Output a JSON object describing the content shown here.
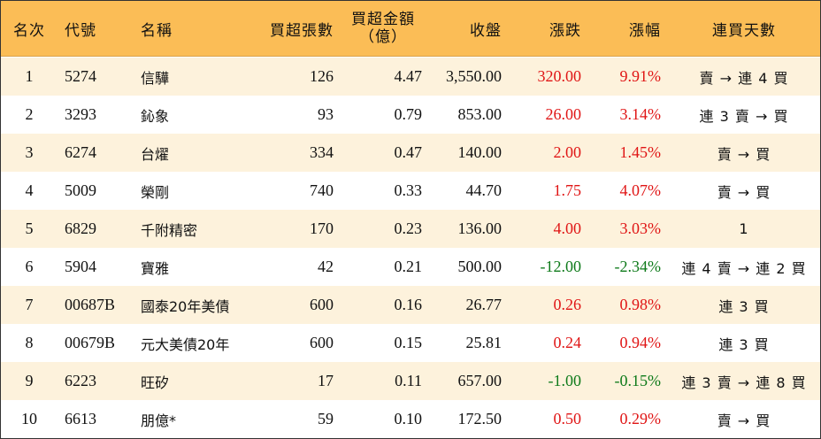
{
  "headers": {
    "rank": "名次",
    "code": "代號",
    "name": "名稱",
    "net_buy_lots": "買超張數",
    "net_buy_amount_l1": "買超金額",
    "net_buy_amount_l2": "（億）",
    "close": "收盤",
    "change": "漲跌",
    "change_pct": "漲幅",
    "streak": "連買天數"
  },
  "colors": {
    "header_bg": "#fbbd56",
    "stripe_bg": "#fdf2dc",
    "up": "#e01515",
    "down": "#0e7a1a"
  },
  "rows": [
    {
      "rank": "1",
      "code": "5274",
      "name": "信驊",
      "lots": "126",
      "amount": "4.47",
      "close": "3,550.00",
      "change": "320.00",
      "pct": "9.91%",
      "streak": "賣 → 連 4 買",
      "dir": "up"
    },
    {
      "rank": "2",
      "code": "3293",
      "name": "鈊象",
      "lots": "93",
      "amount": "0.79",
      "close": "853.00",
      "change": "26.00",
      "pct": "3.14%",
      "streak": "連 3 賣 → 買",
      "dir": "up"
    },
    {
      "rank": "3",
      "code": "6274",
      "name": "台燿",
      "lots": "334",
      "amount": "0.47",
      "close": "140.00",
      "change": "2.00",
      "pct": "1.45%",
      "streak": "賣 → 買",
      "dir": "up"
    },
    {
      "rank": "4",
      "code": "5009",
      "name": "榮剛",
      "lots": "740",
      "amount": "0.33",
      "close": "44.70",
      "change": "1.75",
      "pct": "4.07%",
      "streak": "賣 → 買",
      "dir": "up"
    },
    {
      "rank": "5",
      "code": "6829",
      "name": "千附精密",
      "lots": "170",
      "amount": "0.23",
      "close": "136.00",
      "change": "4.00",
      "pct": "3.03%",
      "streak": "1",
      "dir": "up"
    },
    {
      "rank": "6",
      "code": "5904",
      "name": "寶雅",
      "lots": "42",
      "amount": "0.21",
      "close": "500.00",
      "change": "-12.00",
      "pct": "-2.34%",
      "streak": "連 4 賣 → 連 2 買",
      "dir": "down"
    },
    {
      "rank": "7",
      "code": "00687B",
      "name": "國泰20年美債",
      "lots": "600",
      "amount": "0.16",
      "close": "26.77",
      "change": "0.26",
      "pct": "0.98%",
      "streak": "連 3 買",
      "dir": "up"
    },
    {
      "rank": "8",
      "code": "00679B",
      "name": "元大美債20年",
      "lots": "600",
      "amount": "0.15",
      "close": "25.81",
      "change": "0.24",
      "pct": "0.94%",
      "streak": "連 3 買",
      "dir": "up"
    },
    {
      "rank": "9",
      "code": "6223",
      "name": "旺矽",
      "lots": "17",
      "amount": "0.11",
      "close": "657.00",
      "change": "-1.00",
      "pct": "-0.15%",
      "streak": "連 3 賣 → 連 8 買",
      "dir": "down"
    },
    {
      "rank": "10",
      "code": "6613",
      "name": "朋億*",
      "lots": "59",
      "amount": "0.10",
      "close": "172.50",
      "change": "0.50",
      "pct": "0.29%",
      "streak": "賣 → 買",
      "dir": "up"
    }
  ]
}
